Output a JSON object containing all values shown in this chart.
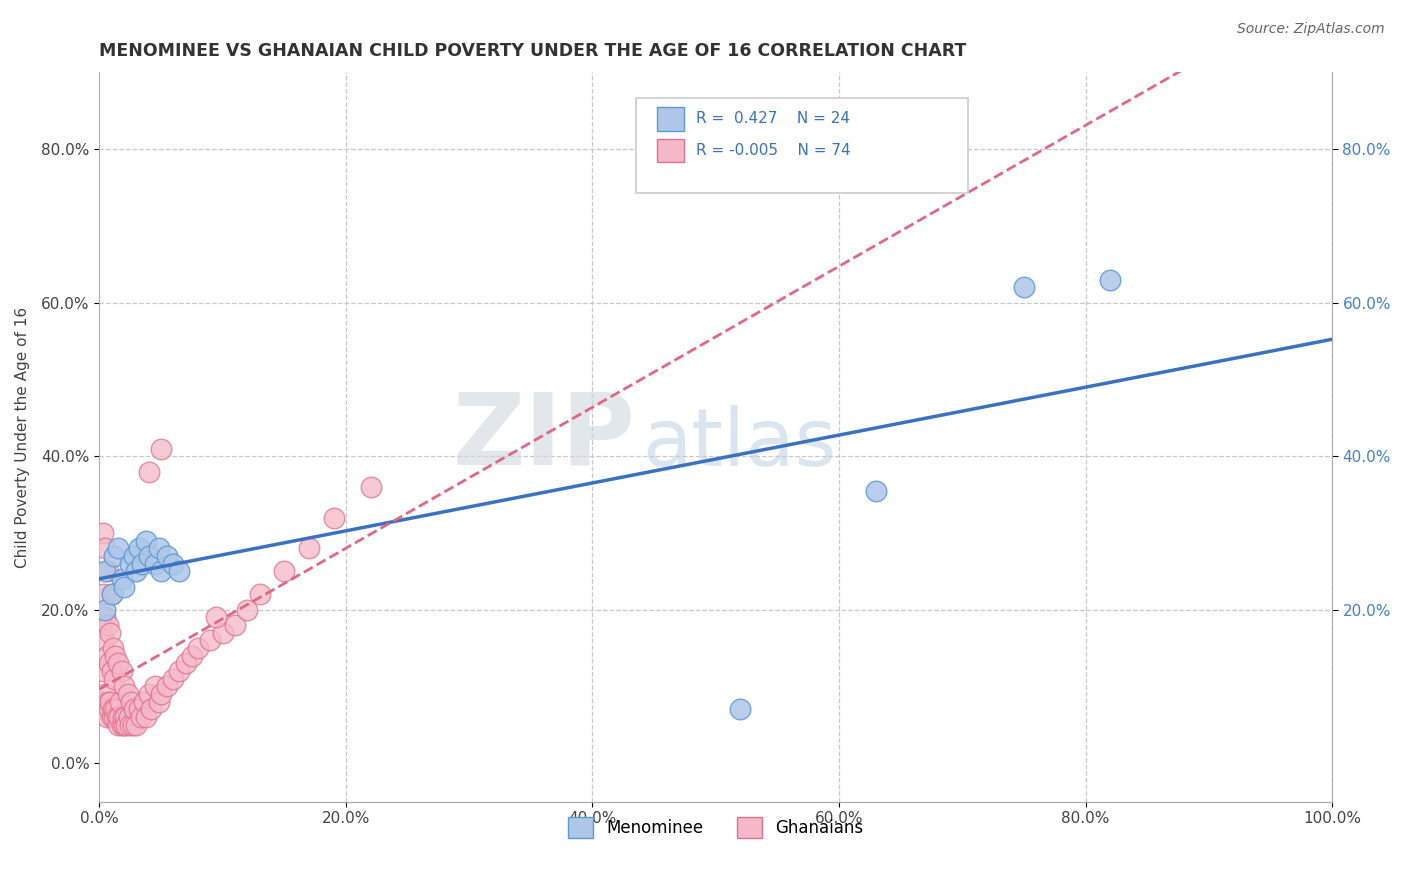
{
  "title": "MENOMINEE VS GHANAIAN CHILD POVERTY UNDER THE AGE OF 16 CORRELATION CHART",
  "source": "Source: ZipAtlas.com",
  "ylabel": "Child Poverty Under the Age of 16",
  "xlim": [
    0,
    1.0
  ],
  "ylim": [
    -0.05,
    0.9
  ],
  "xticks": [
    0.0,
    0.2,
    0.4,
    0.6,
    0.8,
    1.0
  ],
  "xticklabels": [
    "0.0%",
    "20.0%",
    "40.0%",
    "60.0%",
    "80.0%",
    "100.0%"
  ],
  "yticks": [
    0.0,
    0.2,
    0.4,
    0.6,
    0.8
  ],
  "yticklabels": [
    "0.0%",
    "20.0%",
    "40.0%",
    "60.0%",
    "80.0%"
  ],
  "right_yticks": [
    0.2,
    0.4,
    0.6,
    0.8
  ],
  "right_yticklabels": [
    "20.0%",
    "40.0%",
    "60.0%",
    "80.0%"
  ],
  "menominee_color": "#aec6e8",
  "ghanaian_color": "#f5b8c8",
  "menominee_edge": "#5b9bd5",
  "ghanaian_edge": "#e07090",
  "trend_blue": "#3a72c0",
  "trend_pink": "#e06880",
  "legend_r1": "0.427",
  "legend_n1": "24",
  "legend_r2": "-0.005",
  "legend_n2": "74",
  "menominee_x": [
    0.005,
    0.005,
    0.01,
    0.012,
    0.015,
    0.018,
    0.02,
    0.025,
    0.028,
    0.03,
    0.032,
    0.035,
    0.038,
    0.04,
    0.045,
    0.048,
    0.05,
    0.055,
    0.06,
    0.065,
    0.52,
    0.63,
    0.75,
    0.82
  ],
  "menominee_y": [
    0.2,
    0.25,
    0.22,
    0.27,
    0.28,
    0.24,
    0.23,
    0.26,
    0.27,
    0.25,
    0.28,
    0.26,
    0.29,
    0.27,
    0.26,
    0.28,
    0.25,
    0.27,
    0.26,
    0.25,
    0.07,
    0.355,
    0.62,
    0.63
  ],
  "ghanaian_x": [
    0.002,
    0.002,
    0.003,
    0.003,
    0.003,
    0.004,
    0.004,
    0.005,
    0.005,
    0.005,
    0.006,
    0.006,
    0.007,
    0.007,
    0.007,
    0.008,
    0.008,
    0.009,
    0.009,
    0.01,
    0.01,
    0.01,
    0.011,
    0.011,
    0.012,
    0.012,
    0.013,
    0.013,
    0.014,
    0.015,
    0.015,
    0.016,
    0.017,
    0.018,
    0.018,
    0.019,
    0.02,
    0.02,
    0.021,
    0.022,
    0.023,
    0.024,
    0.025,
    0.026,
    0.027,
    0.028,
    0.03,
    0.032,
    0.034,
    0.036,
    0.038,
    0.04,
    0.042,
    0.045,
    0.048,
    0.05,
    0.055,
    0.06,
    0.065,
    0.07,
    0.075,
    0.08,
    0.09,
    0.1,
    0.11,
    0.12,
    0.13,
    0.15,
    0.17,
    0.19,
    0.22,
    0.04,
    0.05,
    0.095
  ],
  "ghanaian_y": [
    0.08,
    0.18,
    0.12,
    0.22,
    0.3,
    0.07,
    0.16,
    0.09,
    0.19,
    0.28,
    0.06,
    0.14,
    0.08,
    0.18,
    0.25,
    0.07,
    0.13,
    0.08,
    0.17,
    0.06,
    0.12,
    0.22,
    0.07,
    0.15,
    0.06,
    0.11,
    0.07,
    0.14,
    0.06,
    0.05,
    0.13,
    0.06,
    0.08,
    0.05,
    0.12,
    0.06,
    0.05,
    0.1,
    0.06,
    0.05,
    0.09,
    0.06,
    0.05,
    0.08,
    0.05,
    0.07,
    0.05,
    0.07,
    0.06,
    0.08,
    0.06,
    0.09,
    0.07,
    0.1,
    0.08,
    0.09,
    0.1,
    0.11,
    0.12,
    0.13,
    0.14,
    0.15,
    0.16,
    0.17,
    0.18,
    0.2,
    0.22,
    0.25,
    0.28,
    0.32,
    0.36,
    0.38,
    0.41,
    0.19
  ],
  "watermark_zip": "ZIP",
  "watermark_atlas": "atlas",
  "background_color": "#ffffff",
  "grid_color": "#c8c8c8"
}
